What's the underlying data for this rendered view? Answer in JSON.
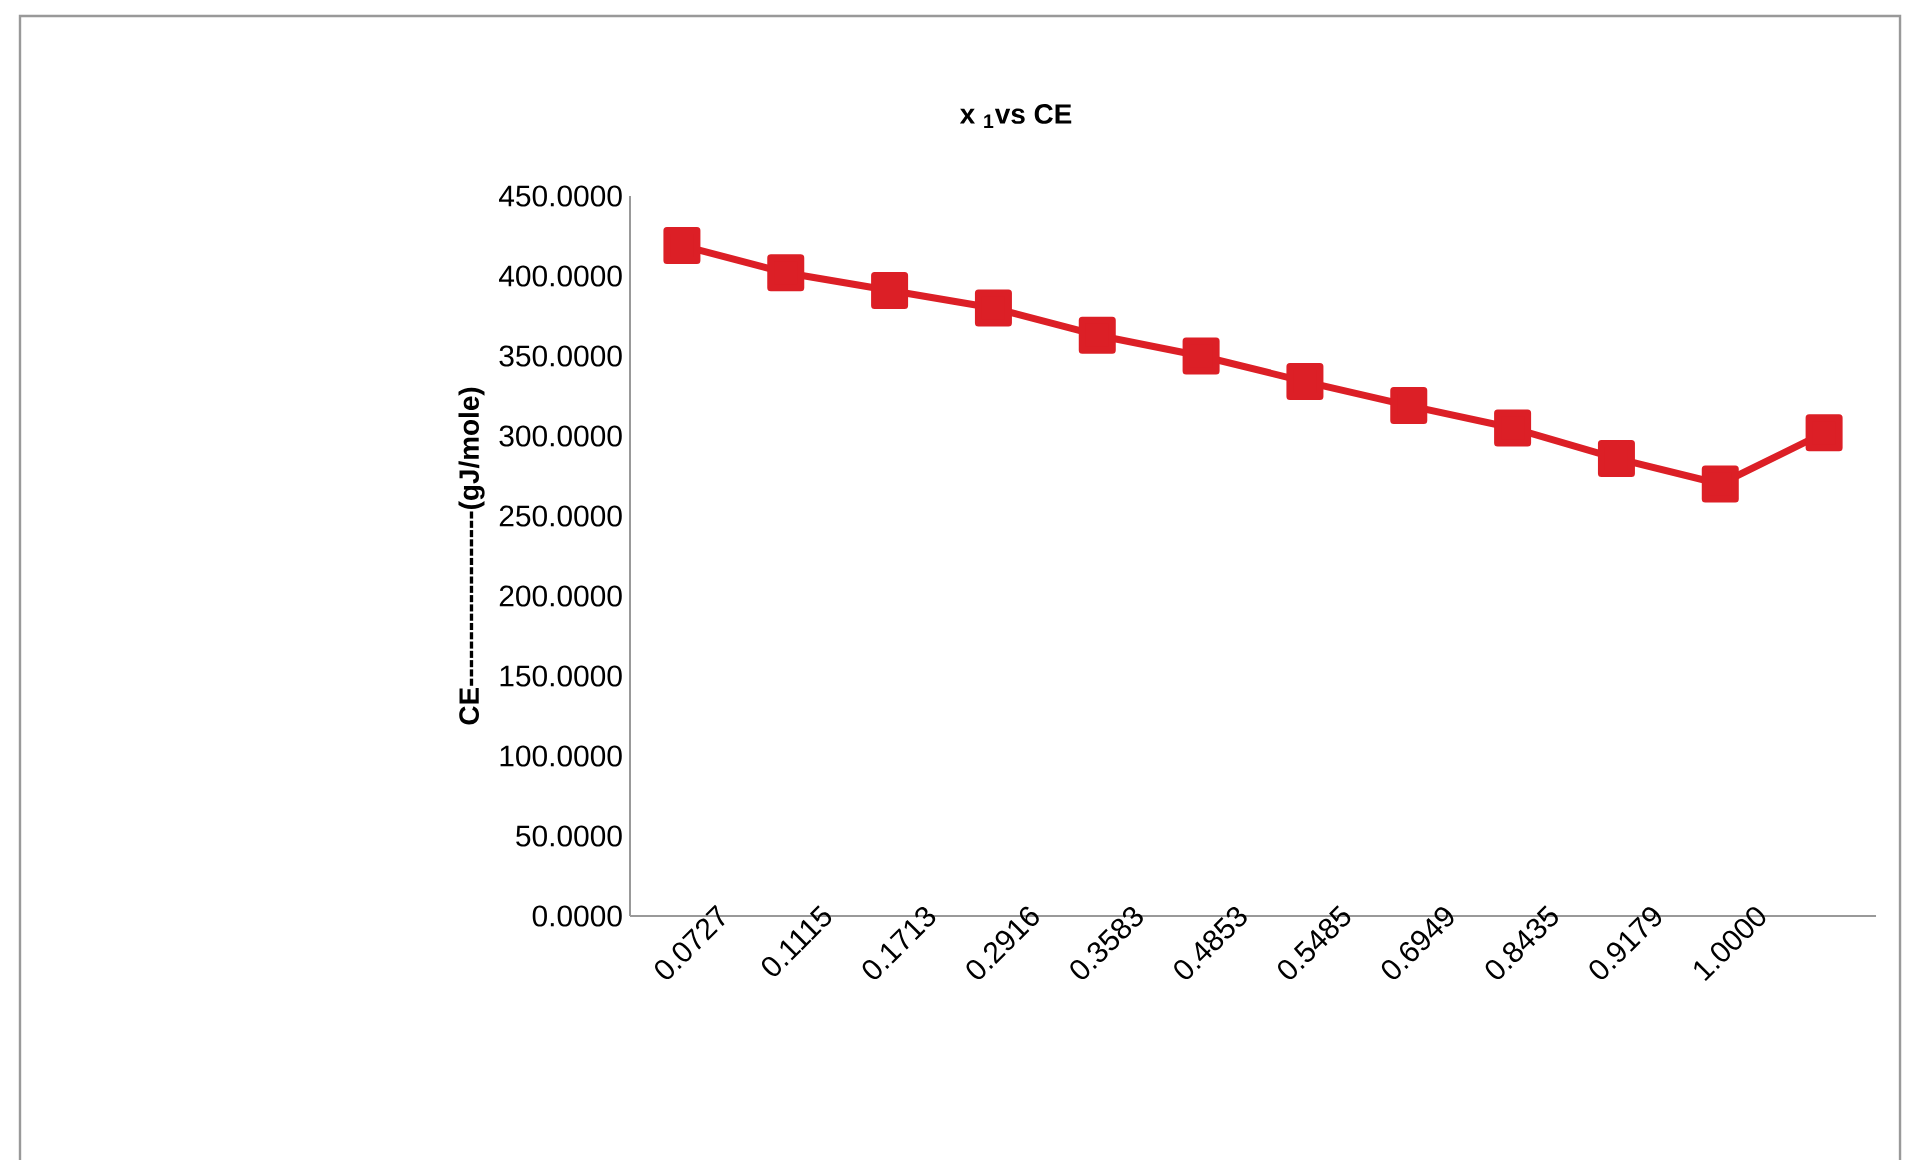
{
  "chart_data": {
    "type": "line",
    "title": "x $_{1}$vs CE",
    "ylabel": "CE-------------------(gJ/mole)",
    "categories": [
      "0.0727",
      "0.1115",
      "0.1713",
      "0.2916",
      "0.3583",
      "0.4853",
      "0.5485",
      "0.6949",
      "0.8435",
      "0.9179",
      "1.0000",
      null
    ],
    "series": [
      {
        "color": "#dc1f26",
        "values": [
          419,
          402,
          391,
          380,
          363,
          350,
          334,
          319,
          305,
          286,
          270,
          302
        ]
      }
    ],
    "ylim": [
      0,
      450
    ],
    "yticks": [
      {
        "value": 0,
        "label": "0.0000"
      },
      {
        "value": 50,
        "label": "50.0000"
      },
      {
        "value": 100,
        "label": "100.0000"
      },
      {
        "value": 150,
        "label": "150.0000"
      },
      {
        "value": 200,
        "label": "200.0000"
      },
      {
        "value": 250,
        "label": "250.0000"
      },
      {
        "value": 300,
        "label": "300.0000"
      },
      {
        "value": 350,
        "label": "350.0000"
      },
      {
        "value": 400,
        "label": "400.0000"
      },
      {
        "value": 450,
        "label": "450.0000"
      }
    ],
    "grid": false,
    "marker": "square",
    "line_style": "solid"
  }
}
